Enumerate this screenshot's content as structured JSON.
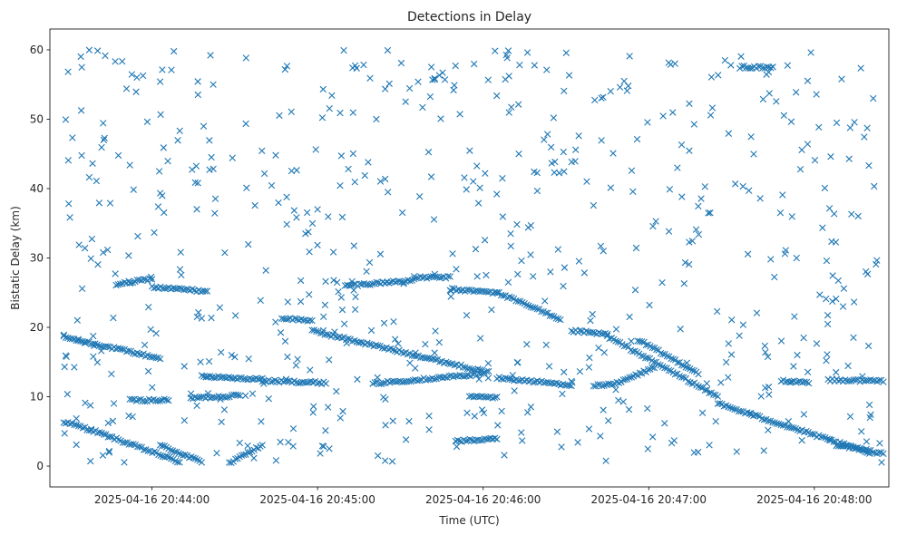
{
  "chart_data": {
    "type": "scatter",
    "title": "Detections in Delay",
    "xlabel": "Time (UTC)",
    "ylabel": "Bistatic Delay (km)",
    "marker": "x",
    "color": "#1f77b4",
    "x_unit": "seconds after 2025-04-16 20:44:00 UTC",
    "xlim": [
      -37,
      267
    ],
    "ylim": [
      -3,
      63
    ],
    "xticks": [
      {
        "value": 0,
        "label": "2025-04-16 20:44:00"
      },
      {
        "value": 60,
        "label": "2025-04-16 20:45:00"
      },
      {
        "value": 120,
        "label": "2025-04-16 20:46:00"
      },
      {
        "value": 180,
        "label": "2025-04-16 20:47:00"
      },
      {
        "value": 240,
        "label": "2025-04-16 20:48:00"
      }
    ],
    "yticks": [
      {
        "value": 0,
        "label": "0"
      },
      {
        "value": 10,
        "label": "10"
      },
      {
        "value": 20,
        "label": "20"
      },
      {
        "value": 30,
        "label": "30"
      },
      {
        "value": 40,
        "label": "40"
      },
      {
        "value": 50,
        "label": "50"
      },
      {
        "value": 60,
        "label": "60"
      }
    ],
    "tracks": [
      {
        "x": [
          -32,
          3
        ],
        "y": [
          18.6,
          15.5
        ]
      },
      {
        "x": [
          -32,
          -22
        ],
        "y": [
          6.4,
          5.2
        ]
      },
      {
        "x": [
          -22,
          10
        ],
        "y": [
          5.2,
          0.6
        ]
      },
      {
        "x": [
          3,
          18
        ],
        "y": [
          3.0,
          0.6
        ]
      },
      {
        "x": [
          -13,
          0
        ],
        "y": [
          26.2,
          27.0
        ]
      },
      {
        "x": [
          0,
          20
        ],
        "y": [
          25.8,
          25.2
        ]
      },
      {
        "x": [
          -8,
          6
        ],
        "y": [
          9.5,
          9.5
        ]
      },
      {
        "x": [
          14,
          32
        ],
        "y": [
          9.8,
          10.2
        ]
      },
      {
        "x": [
          18,
          40
        ],
        "y": [
          13.0,
          12.5
        ]
      },
      {
        "x": [
          28,
          40
        ],
        "y": [
          0.5,
          3.0
        ]
      },
      {
        "x": [
          40,
          63
        ],
        "y": [
          12.3,
          12.0
        ]
      },
      {
        "x": [
          47,
          58
        ],
        "y": [
          21.3,
          21.0
        ]
      },
      {
        "x": [
          58,
          122
        ],
        "y": [
          19.5,
          13.5
        ]
      },
      {
        "x": [
          80,
          120
        ],
        "y": [
          11.9,
          13.3
        ]
      },
      {
        "x": [
          70,
          95
        ],
        "y": [
          26.0,
          26.8
        ]
      },
      {
        "x": [
          95,
          108
        ],
        "y": [
          27.2,
          27.2
        ]
      },
      {
        "x": [
          108,
          125
        ],
        "y": [
          25.5,
          25.0
        ]
      },
      {
        "x": [
          125,
          152
        ],
        "y": [
          12.7,
          11.7
        ]
      },
      {
        "x": [
          125,
          148
        ],
        "y": [
          25.0,
          21.2
        ]
      },
      {
        "x": [
          110,
          125
        ],
        "y": [
          3.6,
          3.9
        ]
      },
      {
        "x": [
          115,
          125
        ],
        "y": [
          10.0,
          9.8
        ]
      },
      {
        "x": [
          152,
          165
        ],
        "y": [
          19.5,
          19.0
        ]
      },
      {
        "x": [
          165,
          205
        ],
        "y": [
          18.7,
          10.0
        ]
      },
      {
        "x": [
          160,
          170
        ],
        "y": [
          11.6,
          12.0
        ]
      },
      {
        "x": [
          170,
          182
        ],
        "y": [
          12.2,
          14.2
        ]
      },
      {
        "x": [
          176,
          198
        ],
        "y": [
          18.2,
          13.4
        ]
      },
      {
        "x": [
          205,
          260
        ],
        "y": [
          9.0,
          1.9
        ]
      },
      {
        "x": [
          228,
          238
        ],
        "y": [
          12.3,
          12.1
        ]
      },
      {
        "x": [
          245,
          265
        ],
        "y": [
          12.4,
          12.3
        ]
      },
      {
        "x": [
          248,
          265
        ],
        "y": [
          3.1,
          1.8
        ]
      },
      {
        "x": [
          213,
          225
        ],
        "y": [
          57.5,
          57.5
        ]
      }
    ],
    "scatter_noise": {
      "approximate_count": 620,
      "x_range": [
        -33,
        265
      ],
      "y_range": [
        0.5,
        60
      ]
    }
  }
}
